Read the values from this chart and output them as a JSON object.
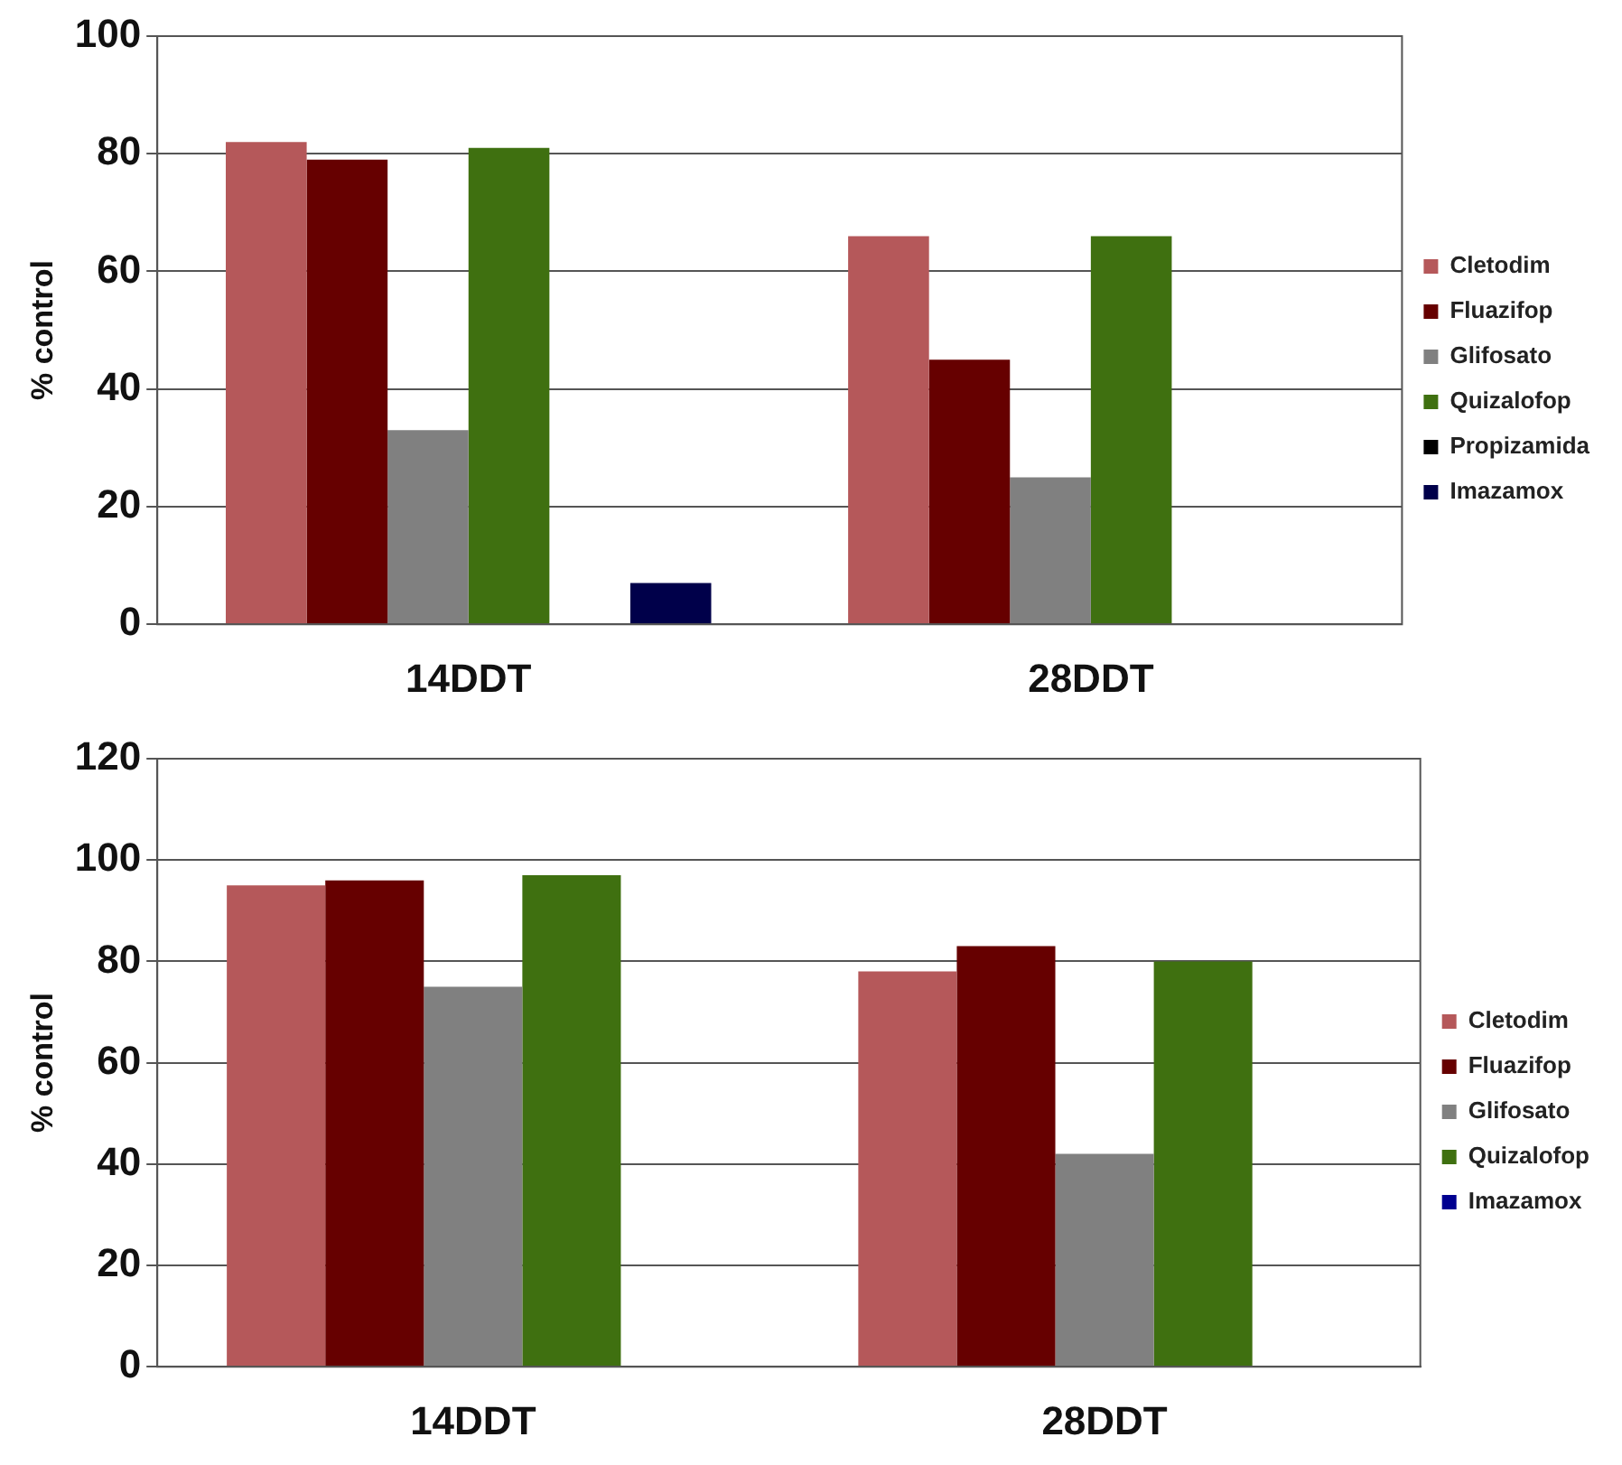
{
  "chart_data": [
    {
      "type": "bar",
      "ylabel": "% control",
      "categories": [
        "14DDT",
        "28DDT"
      ],
      "ylim": [
        0,
        100
      ],
      "yticks": [
        0,
        20,
        40,
        60,
        80,
        100
      ],
      "grid": "y",
      "legend": "right",
      "series": [
        {
          "name": "Cletodim",
          "color": "#b5585a",
          "values": [
            82,
            66
          ]
        },
        {
          "name": "Fluazifop",
          "color": "#660000",
          "values": [
            79,
            45
          ]
        },
        {
          "name": "Glifosato",
          "color": "#808080",
          "values": [
            33,
            25
          ]
        },
        {
          "name": "Quizalofop",
          "color": "#3f7010",
          "values": [
            81,
            66
          ]
        },
        {
          "name": "Propizamida",
          "color": "#000000",
          "values": [
            0,
            0
          ]
        },
        {
          "name": "Imazamox",
          "color": "#00004a",
          "values": [
            7,
            0
          ]
        }
      ]
    },
    {
      "type": "bar",
      "ylabel": "% control",
      "categories": [
        "14DDT",
        "28DDT"
      ],
      "ylim": [
        0,
        120
      ],
      "yticks": [
        0,
        20,
        40,
        60,
        80,
        100,
        120
      ],
      "grid": "y",
      "legend": "right",
      "series": [
        {
          "name": "Cletodim",
          "color": "#b5585a",
          "values": [
            95,
            78
          ]
        },
        {
          "name": "Fluazifop",
          "color": "#660000",
          "values": [
            96,
            83
          ]
        },
        {
          "name": "Glifosato",
          "color": "#808080",
          "values": [
            75,
            42
          ]
        },
        {
          "name": "Quizalofop",
          "color": "#3f7010",
          "values": [
            97,
            80
          ]
        },
        {
          "name": "Imazamox",
          "color": "#000090",
          "values": [
            0,
            0
          ]
        }
      ]
    }
  ]
}
